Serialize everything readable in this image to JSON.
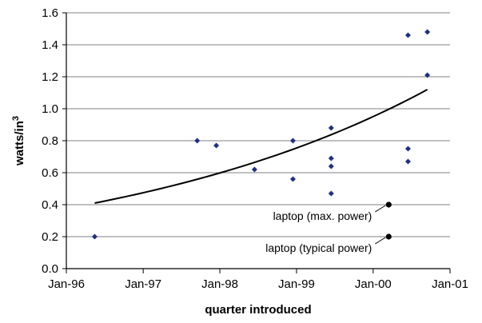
{
  "chart_data": {
    "type": "scatter",
    "title": "",
    "xlabel": "quarter introduced",
    "ylabel": {
      "base": "watts/in",
      "superscript": "3"
    },
    "xlim": [
      "1996-01-01",
      "2001-01-01"
    ],
    "ylim": [
      0,
      1.6
    ],
    "y_ticks": [
      0.0,
      0.2,
      0.4,
      0.6,
      0.8,
      1.0,
      1.2,
      1.4,
      1.6
    ],
    "y_tick_labels": [
      "0.0",
      "0.2",
      "0.4",
      "0.6",
      "0.8",
      "1.0",
      "1.2",
      "1.4",
      "1.6"
    ],
    "x_ticks": [
      "1996-01-01",
      "1997-01-01",
      "1998-01-01",
      "1999-01-01",
      "2000-01-01",
      "2001-01-01"
    ],
    "x_tick_labels": [
      "Jan-96",
      "Jan-97",
      "Jan-98",
      "Jan-99",
      "Jan-00",
      "Jan-01"
    ],
    "grid": {
      "horizontal": true,
      "vertical": false
    },
    "colors": {
      "points": "#1f2f86",
      "trend": "#000000",
      "laptop": "#000000",
      "grid": "#808080"
    },
    "series": [
      {
        "points": [
          {
            "x": "1996-05-15",
            "y": 0.2
          },
          {
            "x": "1997-09-15",
            "y": 0.8
          },
          {
            "x": "1997-12-15",
            "y": 0.77
          },
          {
            "x": "1998-06-15",
            "y": 0.62
          },
          {
            "x": "1998-12-15",
            "y": 0.8
          },
          {
            "x": "1998-12-15",
            "y": 0.56
          },
          {
            "x": "1999-06-15",
            "y": 0.88
          },
          {
            "x": "1999-06-15",
            "y": 0.69
          },
          {
            "x": "1999-06-15",
            "y": 0.64
          },
          {
            "x": "1999-06-15",
            "y": 0.47
          },
          {
            "x": "2000-06-15",
            "y": 1.46
          },
          {
            "x": "2000-06-15",
            "y": 0.75
          },
          {
            "x": "2000-06-15",
            "y": 0.67
          },
          {
            "x": "2000-09-15",
            "y": 1.48
          },
          {
            "x": "2000-09-15",
            "y": 1.21
          }
        ]
      }
    ],
    "trendline": {
      "type": "exponential",
      "start": {
        "x": "1996-05-15",
        "y": 0.41
      },
      "end": {
        "x": "2000-09-15",
        "y": 1.12
      }
    },
    "annotations": [
      {
        "label": "laptop (max. power)",
        "x": "2000-03-15",
        "y": 0.4
      },
      {
        "label": "laptop (typical power)",
        "x": "2000-03-15",
        "y": 0.2
      }
    ]
  }
}
